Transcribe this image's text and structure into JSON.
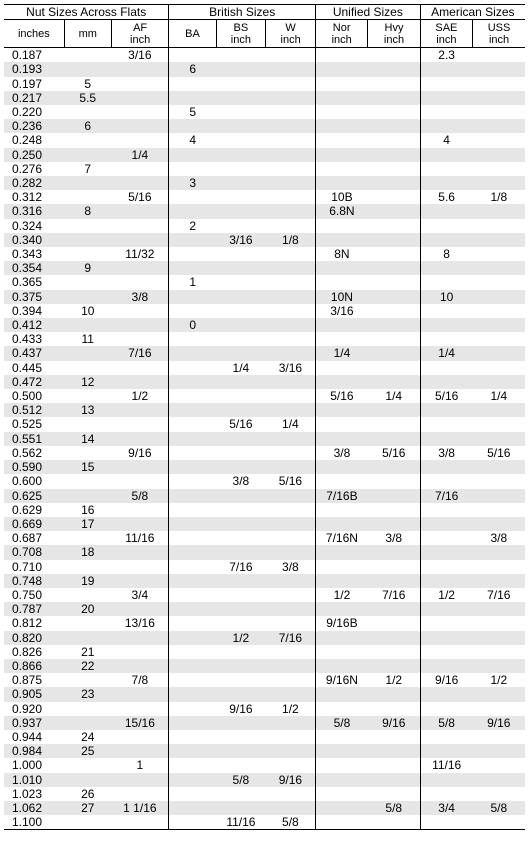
{
  "table": {
    "font_family": "Helvetica, Arial, sans-serif",
    "font_size_body": 12,
    "font_size_colhdr": 11,
    "row_stripe_color": "#e6e6e6",
    "background_color": "#ffffff",
    "border_color": "#000000",
    "groups": [
      {
        "label": "Nut Sizes Across Flats",
        "span": 3
      },
      {
        "label": "British Sizes",
        "span": 3
      },
      {
        "label": "Unified Sizes",
        "span": 2
      },
      {
        "label": "American Sizes",
        "span": 2
      }
    ],
    "columns": [
      {
        "key": "inches",
        "label": "inches"
      },
      {
        "key": "mm",
        "label": "mm"
      },
      {
        "key": "af",
        "label": "AF\ninch"
      },
      {
        "key": "ba",
        "label": "BA"
      },
      {
        "key": "bs",
        "label": "BS\ninch"
      },
      {
        "key": "w",
        "label": "W\ninch"
      },
      {
        "key": "nor",
        "label": "Nor\ninch"
      },
      {
        "key": "hvy",
        "label": "Hvy\ninch"
      },
      {
        "key": "sae",
        "label": "SAE\ninch"
      },
      {
        "key": "uss",
        "label": "USS\ninch"
      }
    ],
    "rows": [
      [
        "0.187",
        "",
        "3/16",
        "",
        "",
        "",
        "",
        "",
        "2.3",
        ""
      ],
      [
        "0.193",
        "",
        "",
        "6",
        "",
        "",
        "",
        "",
        "",
        ""
      ],
      [
        "0.197",
        "5",
        "",
        "",
        "",
        "",
        "",
        "",
        "",
        ""
      ],
      [
        "0.217",
        "5.5",
        "",
        "",
        "",
        "",
        "",
        "",
        "",
        ""
      ],
      [
        "0.220",
        "",
        "",
        "5",
        "",
        "",
        "",
        "",
        "",
        ""
      ],
      [
        "0.236",
        "6",
        "",
        "",
        "",
        "",
        "",
        "",
        "",
        ""
      ],
      [
        "0.248",
        "",
        "",
        "4",
        "",
        "",
        "",
        "",
        "4",
        ""
      ],
      [
        "0.250",
        "",
        "1/4",
        "",
        "",
        "",
        "",
        "",
        "",
        ""
      ],
      [
        "0.276",
        "7",
        "",
        "",
        "",
        "",
        "",
        "",
        "",
        ""
      ],
      [
        "0.282",
        "",
        "",
        "3",
        "",
        "",
        "",
        "",
        "",
        ""
      ],
      [
        "0.312",
        "",
        "5/16",
        "",
        "",
        "",
        "10B",
        "",
        "5.6",
        "1/8"
      ],
      [
        "0.316",
        "8",
        "",
        "",
        "",
        "",
        "6.8N",
        "",
        "",
        ""
      ],
      [
        "0.324",
        "",
        "",
        "2",
        "",
        "",
        "",
        "",
        "",
        ""
      ],
      [
        "0.340",
        "",
        "",
        "",
        "3/16",
        "1/8",
        "",
        "",
        "",
        ""
      ],
      [
        "0.343",
        "",
        "11/32",
        "",
        "",
        "",
        "8N",
        "",
        "8",
        ""
      ],
      [
        "0.354",
        "9",
        "",
        "",
        "",
        "",
        "",
        "",
        "",
        ""
      ],
      [
        "0.365",
        "",
        "",
        "1",
        "",
        "",
        "",
        "",
        "",
        ""
      ],
      [
        "0.375",
        "",
        "3/8",
        "",
        "",
        "",
        "10N",
        "",
        "10",
        ""
      ],
      [
        "0.394",
        "10",
        "",
        "",
        "",
        "",
        "3/16",
        "",
        "",
        ""
      ],
      [
        "0.412",
        "",
        "",
        "0",
        "",
        "",
        "",
        "",
        "",
        ""
      ],
      [
        "0.433",
        "11",
        "",
        "",
        "",
        "",
        "",
        "",
        "",
        ""
      ],
      [
        "0.437",
        "",
        "7/16",
        "",
        "",
        "",
        "1/4",
        "",
        "1/4",
        ""
      ],
      [
        "0.445",
        "",
        "",
        "",
        "1/4",
        "3/16",
        "",
        "",
        "",
        ""
      ],
      [
        "0.472",
        "12",
        "",
        "",
        "",
        "",
        "",
        "",
        "",
        ""
      ],
      [
        "0.500",
        "",
        "1/2",
        "",
        "",
        "",
        "5/16",
        "1/4",
        "5/16",
        "1/4"
      ],
      [
        "0.512",
        "13",
        "",
        "",
        "",
        "",
        "",
        "",
        "",
        ""
      ],
      [
        "0.525",
        "",
        "",
        "",
        "5/16",
        "1/4",
        "",
        "",
        "",
        ""
      ],
      [
        "0.551",
        "14",
        "",
        "",
        "",
        "",
        "",
        "",
        "",
        ""
      ],
      [
        "0.562",
        "",
        "9/16",
        "",
        "",
        "",
        "3/8",
        "5/16",
        "3/8",
        "5/16"
      ],
      [
        "0.590",
        "15",
        "",
        "",
        "",
        "",
        "",
        "",
        "",
        ""
      ],
      [
        "0.600",
        "",
        "",
        "",
        "3/8",
        "5/16",
        "",
        "",
        "",
        ""
      ],
      [
        "0.625",
        "",
        "5/8",
        "",
        "",
        "",
        "7/16B",
        "",
        "7/16",
        ""
      ],
      [
        "0.629",
        "16",
        "",
        "",
        "",
        "",
        "",
        "",
        "",
        ""
      ],
      [
        "0.669",
        "17",
        "",
        "",
        "",
        "",
        "",
        "",
        "",
        ""
      ],
      [
        "0.687",
        "",
        "11/16",
        "",
        "",
        "",
        "7/16N",
        "3/8",
        "",
        "3/8"
      ],
      [
        "0.708",
        "18",
        "",
        "",
        "",
        "",
        "",
        "",
        "",
        ""
      ],
      [
        "0.710",
        "",
        "",
        "",
        "7/16",
        "3/8",
        "",
        "",
        "",
        ""
      ],
      [
        "0.748",
        "19",
        "",
        "",
        "",
        "",
        "",
        "",
        "",
        ""
      ],
      [
        "0.750",
        "",
        "3/4",
        "",
        "",
        "",
        "1/2",
        "7/16",
        "1/2",
        "7/16"
      ],
      [
        "0.787",
        "20",
        "",
        "",
        "",
        "",
        "",
        "",
        "",
        ""
      ],
      [
        "0.812",
        "",
        "13/16",
        "",
        "",
        "",
        "9/16B",
        "",
        "",
        ""
      ],
      [
        "0.820",
        "",
        "",
        "",
        "1/2",
        "7/16",
        "",
        "",
        "",
        ""
      ],
      [
        "0.826",
        "21",
        "",
        "",
        "",
        "",
        "",
        "",
        "",
        ""
      ],
      [
        "0.866",
        "22",
        "",
        "",
        "",
        "",
        "",
        "",
        "",
        ""
      ],
      [
        "0.875",
        "",
        "7/8",
        "",
        "",
        "",
        "9/16N",
        "1/2",
        "9/16",
        "1/2"
      ],
      [
        "0.905",
        "23",
        "",
        "",
        "",
        "",
        "",
        "",
        "",
        ""
      ],
      [
        "0.920",
        "",
        "",
        "",
        "9/16",
        "1/2",
        "",
        "",
        "",
        ""
      ],
      [
        "0.937",
        "",
        "15/16",
        "",
        "",
        "",
        "5/8",
        "9/16",
        "5/8",
        "9/16"
      ],
      [
        "0.944",
        "24",
        "",
        "",
        "",
        "",
        "",
        "",
        "",
        ""
      ],
      [
        "0.984",
        "25",
        "",
        "",
        "",
        "",
        "",
        "",
        "",
        ""
      ],
      [
        "1.000",
        "",
        "1",
        "",
        "",
        "",
        "",
        "",
        "11/16",
        ""
      ],
      [
        "1.010",
        "",
        "",
        "",
        "5/8",
        "9/16",
        "",
        "",
        "",
        ""
      ],
      [
        "1.023",
        "26",
        "",
        "",
        "",
        "",
        "",
        "",
        "",
        ""
      ],
      [
        "1.062",
        "27",
        "1 1/16",
        "",
        "",
        "",
        "",
        "5/8",
        "3/4",
        "5/8"
      ],
      [
        "1.100",
        "",
        "",
        "",
        "11/16",
        "5/8",
        "",
        "",
        "",
        ""
      ]
    ]
  }
}
